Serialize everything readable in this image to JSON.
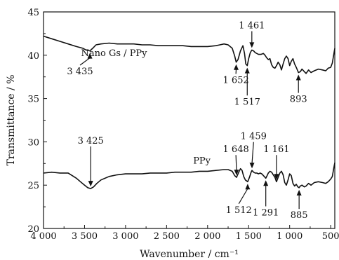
{
  "chart_data": {
    "type": "line",
    "xlabel": "Wavenumber / cm⁻¹",
    "ylabel": "Transmittance / %",
    "xlim": [
      4000,
      450
    ],
    "ylim": [
      20,
      45
    ],
    "x_ticks": [
      4000,
      3500,
      3000,
      2500,
      2000,
      1500,
      1000,
      500
    ],
    "x_tick_labels": [
      "4 000",
      "3 500",
      "3 000",
      "2 500",
      "2 000",
      "1 500",
      "1 000",
      "500"
    ],
    "y_ticks": [
      20,
      25,
      30,
      35,
      40,
      45
    ],
    "y_tick_labels": [
      "20",
      "25",
      "30",
      "35",
      "40",
      "45"
    ],
    "series": [
      {
        "name": "Nano Gs / PPy",
        "x": [
          4000,
          3900,
          3800,
          3700,
          3600,
          3520,
          3480,
          3435,
          3400,
          3360,
          3300,
          3200,
          3100,
          3000,
          2900,
          2800,
          2700,
          2600,
          2500,
          2400,
          2300,
          2200,
          2100,
          2000,
          1900,
          1850,
          1800,
          1750,
          1700,
          1670,
          1652,
          1630,
          1600,
          1570,
          1550,
          1535,
          1517,
          1500,
          1480,
          1461,
          1440,
          1420,
          1400,
          1380,
          1350,
          1320,
          1300,
          1280,
          1260,
          1240,
          1220,
          1200,
          1180,
          1160,
          1140,
          1120,
          1100,
          1080,
          1060,
          1040,
          1020,
          1000,
          980,
          960,
          940,
          920,
          893,
          870,
          850,
          820,
          800,
          770,
          740,
          700,
          650,
          600,
          560,
          530,
          500,
          480,
          460,
          450
        ],
        "y": [
          42.2,
          41.9,
          41.6,
          41.3,
          41.0,
          40.8,
          40.6,
          40.5,
          40.8,
          41.2,
          41.3,
          41.4,
          41.3,
          41.3,
          41.3,
          41.2,
          41.2,
          41.1,
          41.1,
          41.1,
          41.1,
          41.0,
          41.0,
          41.0,
          41.1,
          41.2,
          41.3,
          41.2,
          40.8,
          39.9,
          39.2,
          39.5,
          40.5,
          41.1,
          40.2,
          39.0,
          38.8,
          39.6,
          40.3,
          40.6,
          40.5,
          40.3,
          40.2,
          40.1,
          40.1,
          40.2,
          40.0,
          39.7,
          39.5,
          39.6,
          38.9,
          38.6,
          38.5,
          38.8,
          39.2,
          38.9,
          38.3,
          39.0,
          39.6,
          39.9,
          39.6,
          38.8,
          39.3,
          39.6,
          39.0,
          38.6,
          38.0,
          38.1,
          38.4,
          38.1,
          37.9,
          38.3,
          38.0,
          38.2,
          38.4,
          38.3,
          38.2,
          38.5,
          38.6,
          39.1,
          40.2,
          40.8
        ]
      },
      {
        "name": "PPy",
        "x": [
          4000,
          3900,
          3800,
          3700,
          3650,
          3600,
          3550,
          3500,
          3460,
          3425,
          3390,
          3350,
          3300,
          3200,
          3100,
          3000,
          2900,
          2800,
          2700,
          2600,
          2500,
          2400,
          2300,
          2200,
          2100,
          2000,
          1900,
          1800,
          1750,
          1700,
          1670,
          1648,
          1620,
          1600,
          1580,
          1560,
          1540,
          1512,
          1490,
          1470,
          1459,
          1440,
          1420,
          1400,
          1380,
          1360,
          1340,
          1320,
          1300,
          1291,
          1280,
          1260,
          1240,
          1220,
          1200,
          1180,
          1161,
          1140,
          1120,
          1100,
          1080,
          1060,
          1040,
          1020,
          1000,
          980,
          960,
          940,
          920,
          900,
          885,
          870,
          850,
          820,
          800,
          770,
          740,
          700,
          650,
          600,
          560,
          530,
          500,
          480,
          465,
          450
        ],
        "y": [
          26.4,
          26.5,
          26.4,
          26.4,
          26.1,
          25.8,
          25.4,
          25.0,
          24.7,
          24.6,
          24.8,
          25.2,
          25.6,
          26.0,
          26.2,
          26.3,
          26.3,
          26.3,
          26.4,
          26.4,
          26.4,
          26.5,
          26.5,
          26.5,
          26.6,
          26.6,
          26.7,
          26.8,
          26.8,
          26.6,
          26.1,
          25.9,
          26.5,
          26.9,
          26.7,
          26.0,
          25.6,
          25.4,
          25.9,
          26.5,
          26.7,
          26.5,
          26.4,
          26.4,
          26.3,
          26.4,
          26.3,
          26.1,
          25.9,
          25.8,
          26.0,
          26.4,
          26.6,
          26.5,
          26.2,
          25.9,
          25.4,
          25.9,
          26.4,
          26.6,
          26.2,
          25.3,
          25.0,
          25.6,
          26.3,
          26.1,
          25.2,
          24.9,
          25.1,
          24.8,
          24.7,
          24.9,
          25.0,
          24.8,
          24.9,
          25.2,
          25.0,
          25.3,
          25.4,
          25.3,
          25.2,
          25.4,
          25.7,
          26.0,
          26.8,
          27.6
        ]
      }
    ],
    "series_labels": [
      {
        "text": "Nano Gs / PPy",
        "x": 3140,
        "y": 39.9
      },
      {
        "text": "PPy",
        "x": 2070,
        "y": 27.5
      }
    ],
    "annotations": [
      {
        "text": "3 435",
        "peak_x": 3435,
        "peak_y": 40.5,
        "label_x": 3555,
        "label_y": 37.8,
        "direction": "up"
      },
      {
        "text": "1 461",
        "peak_x": 1461,
        "peak_y": 40.6,
        "label_x": 1461,
        "label_y": 43.1,
        "direction": "down"
      },
      {
        "text": "1 652",
        "peak_x": 1652,
        "peak_y": 39.2,
        "label_x": 1655,
        "label_y": 36.8,
        "direction": "up"
      },
      {
        "text": "1 517",
        "peak_x": 1517,
        "peak_y": 38.8,
        "label_x": 1517,
        "label_y": 34.3,
        "direction": "up"
      },
      {
        "text": "893",
        "peak_x": 893,
        "peak_y": 38.0,
        "label_x": 893,
        "label_y": 34.6,
        "direction": "up"
      },
      {
        "text": "3 425",
        "peak_x": 3425,
        "peak_y": 24.6,
        "label_x": 3425,
        "label_y": 29.8,
        "direction": "down"
      },
      {
        "text": "1 648",
        "peak_x": 1648,
        "peak_y": 25.9,
        "label_x": 1655,
        "label_y": 28.8,
        "direction": "down"
      },
      {
        "text": "1 459",
        "peak_x": 1459,
        "peak_y": 26.7,
        "label_x": 1440,
        "label_y": 30.3,
        "direction": "down"
      },
      {
        "text": "1 161",
        "peak_x": 1161,
        "peak_y": 25.4,
        "label_x": 1161,
        "label_y": 28.8,
        "direction": "down"
      },
      {
        "text": "1 512",
        "peak_x": 1512,
        "peak_y": 25.4,
        "label_x": 1620,
        "label_y": 21.8,
        "direction": "up"
      },
      {
        "text": "1 291",
        "peak_x": 1291,
        "peak_y": 25.8,
        "label_x": 1291,
        "label_y": 21.5,
        "direction": "up"
      },
      {
        "text": "885",
        "peak_x": 885,
        "peak_y": 24.7,
        "label_x": 885,
        "label_y": 21.2,
        "direction": "up"
      }
    ]
  }
}
